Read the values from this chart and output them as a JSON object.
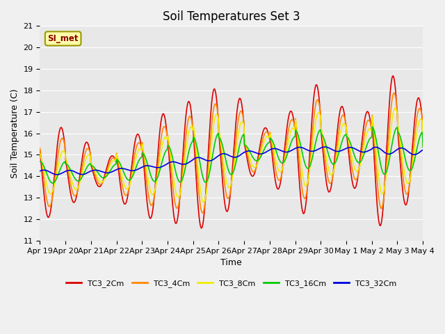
{
  "title": "Soil Temperatures Set 3",
  "xlabel": "Time",
  "ylabel": "Soil Temperature (C)",
  "ylim": [
    11.0,
    21.0
  ],
  "yticks": [
    11.0,
    12.0,
    13.0,
    14.0,
    15.0,
    16.0,
    17.0,
    18.0,
    19.0,
    20.0,
    21.0
  ],
  "xtick_labels": [
    "Apr 19",
    "Apr 20",
    "Apr 21",
    "Apr 22",
    "Apr 23",
    "Apr 24",
    "Apr 25",
    "Apr 26",
    "Apr 27",
    "Apr 28",
    "Apr 29",
    "Apr 30",
    "May 1",
    "May 2",
    "May 3",
    "May 4"
  ],
  "annotation_text": "SI_met",
  "series": [
    {
      "label": "TC3_2Cm",
      "color": "#dd0000",
      "lw": 1.2
    },
    {
      "label": "TC3_4Cm",
      "color": "#ff8800",
      "lw": 1.2
    },
    {
      "label": "TC3_8Cm",
      "color": "#eeee00",
      "lw": 1.2
    },
    {
      "label": "TC3_16Cm",
      "color": "#00cc00",
      "lw": 1.2
    },
    {
      "label": "TC3_32Cm",
      "color": "#0000dd",
      "lw": 1.2
    }
  ],
  "bg_color": "#e8e8e8",
  "grid_color": "#ffffff",
  "title_fontsize": 12,
  "axis_fontsize": 9,
  "tick_fontsize": 8
}
